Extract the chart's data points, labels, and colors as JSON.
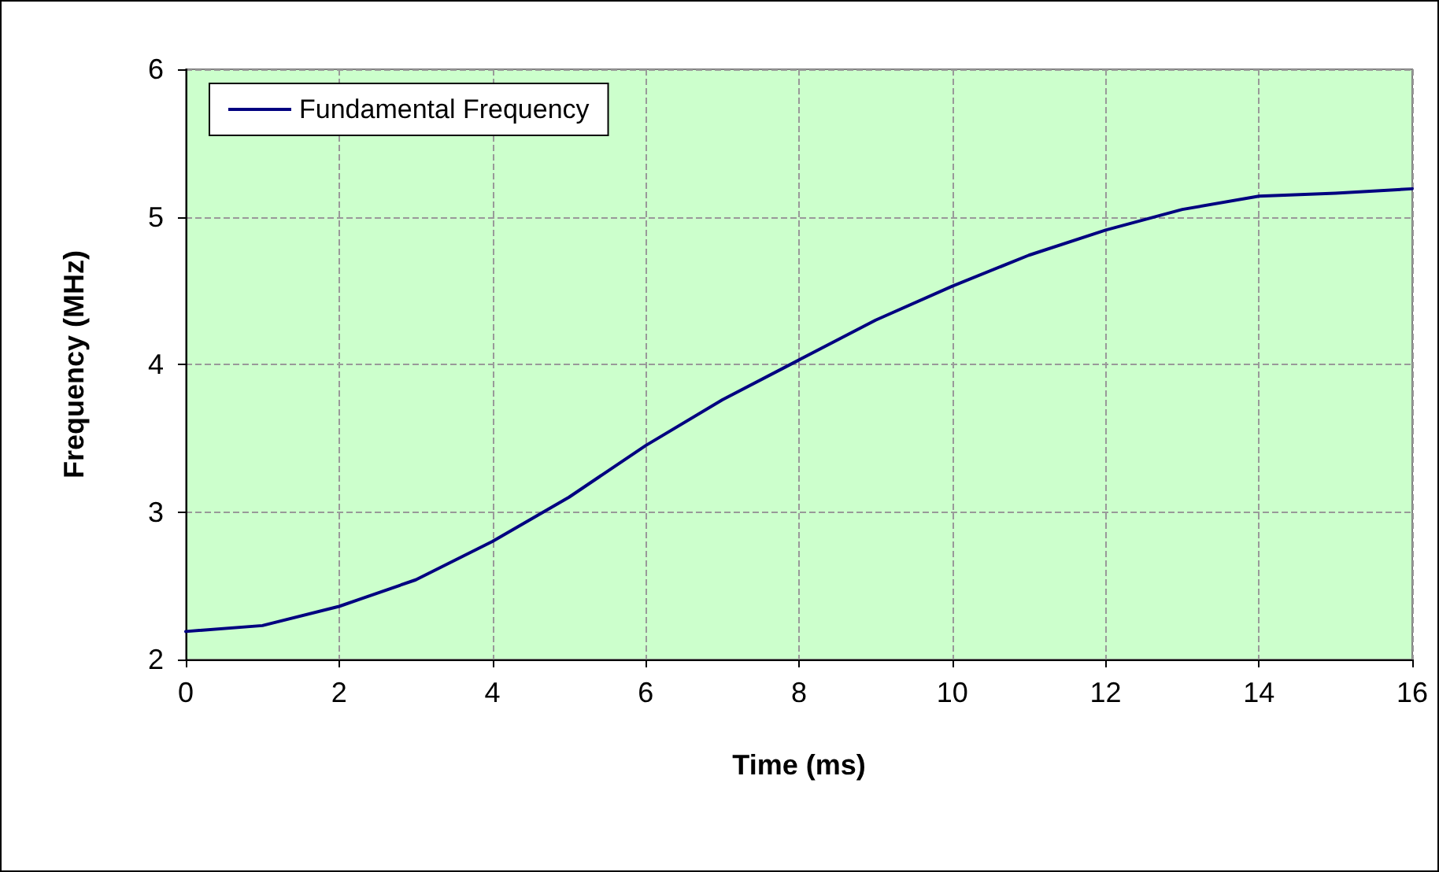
{
  "chart_data": {
    "type": "line",
    "xlabel": "Time (ms)",
    "ylabel": "Frequency (MHz)",
    "x": [
      0,
      1,
      2,
      3,
      4,
      5,
      6,
      7,
      8,
      9,
      10,
      11,
      12,
      13,
      14,
      15,
      16
    ],
    "series": [
      {
        "name": "Fundamental Frequency",
        "color": "#000080",
        "values": [
          2.19,
          2.23,
          2.36,
          2.54,
          2.8,
          3.1,
          3.45,
          3.76,
          4.03,
          4.3,
          4.53,
          4.74,
          4.91,
          5.05,
          5.14,
          5.16,
          5.19
        ]
      }
    ],
    "xlim": [
      0,
      16
    ],
    "xticks": [
      0,
      2,
      4,
      6,
      8,
      10,
      12,
      14,
      16
    ],
    "ylim": [
      2,
      6
    ],
    "yticks": [
      2,
      3,
      4,
      5,
      6
    ],
    "grid": true,
    "legend": "top left",
    "marker": "none",
    "line_style": "solid"
  }
}
